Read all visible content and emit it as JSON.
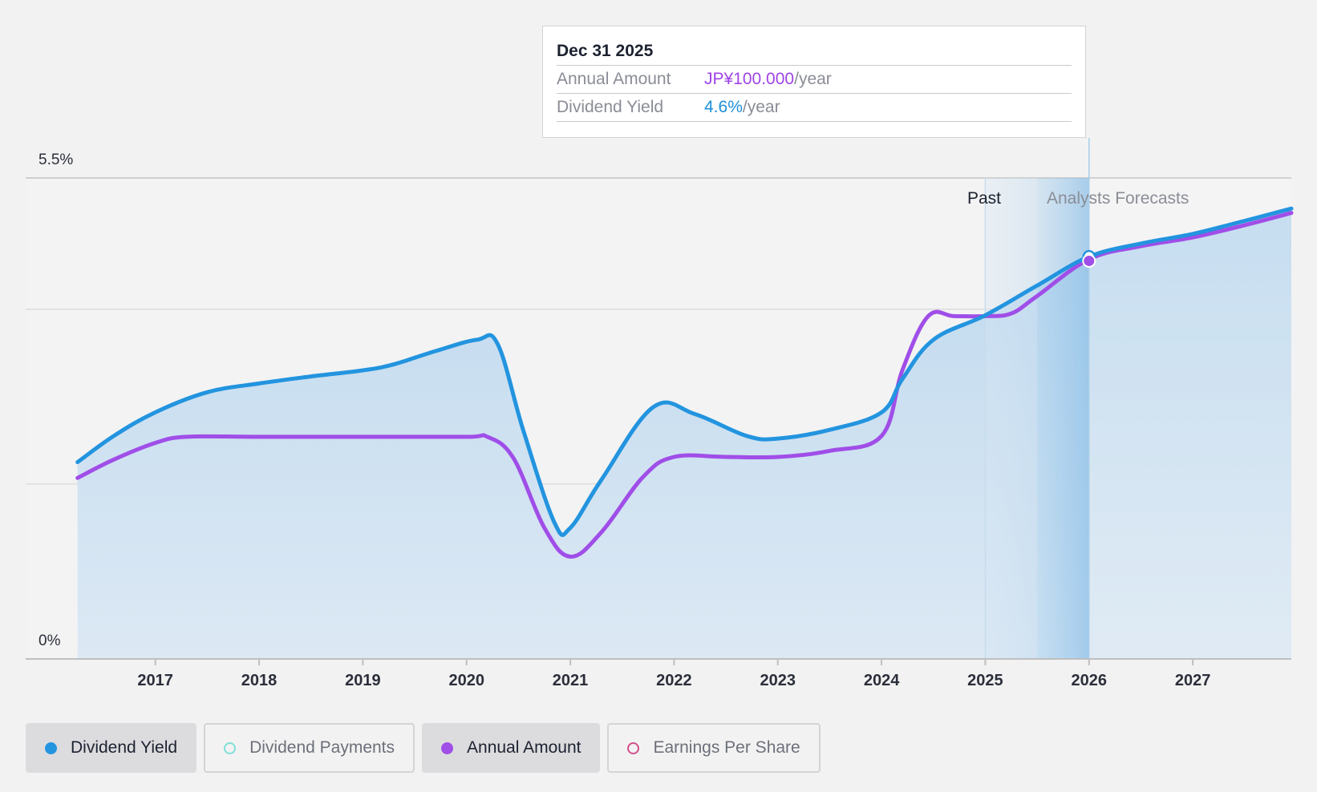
{
  "tooltip": {
    "date": "Dec 31 2025",
    "rows": [
      {
        "label": "Annual Amount",
        "value": "JP¥100.000",
        "unit": "/year"
      },
      {
        "label": "Dividend Yield",
        "value": "4.6%",
        "unit": "/year"
      }
    ]
  },
  "regions": {
    "past_label": "Past",
    "forecast_label": "Analysts Forecasts"
  },
  "legend": [
    {
      "label": "Dividend Yield",
      "color": "#2394df",
      "state": "active",
      "dot": "filled"
    },
    {
      "label": "Dividend Payments",
      "color": "#7fe0d6",
      "state": "inactive",
      "dot": "hollow"
    },
    {
      "label": "Annual Amount",
      "color": "#a04ee8",
      "state": "active",
      "dot": "filled"
    },
    {
      "label": "Earnings Per Share",
      "color": "#d0508a",
      "state": "inactive",
      "dot": "hollow"
    }
  ],
  "chart_data": {
    "type": "area",
    "x_ticks": [
      "2017",
      "2018",
      "2019",
      "2020",
      "2021",
      "2022",
      "2023",
      "2024",
      "2025",
      "2026",
      "2027"
    ],
    "y_tick_labels": [
      "5.5%",
      "0%"
    ],
    "ylim": [
      0,
      5.5
    ],
    "xlim": [
      2015.75,
      2027.95
    ],
    "past_start": 2025.0,
    "forecast_start": 2026.0,
    "series": [
      {
        "name": "Dividend Yield",
        "color": "#2394df",
        "points": [
          [
            2016.25,
            2.25
          ],
          [
            2016.6,
            2.55
          ],
          [
            2017.0,
            2.82
          ],
          [
            2017.5,
            3.05
          ],
          [
            2018.0,
            3.15
          ],
          [
            2018.5,
            3.23
          ],
          [
            2019.0,
            3.3
          ],
          [
            2019.3,
            3.37
          ],
          [
            2019.7,
            3.52
          ],
          [
            2020.1,
            3.65
          ],
          [
            2020.3,
            3.6
          ],
          [
            2020.55,
            2.6
          ],
          [
            2020.85,
            1.55
          ],
          [
            2021.0,
            1.5
          ],
          [
            2021.3,
            2.05
          ],
          [
            2021.8,
            2.88
          ],
          [
            2022.2,
            2.8
          ],
          [
            2022.7,
            2.55
          ],
          [
            2023.0,
            2.52
          ],
          [
            2023.5,
            2.62
          ],
          [
            2024.0,
            2.82
          ],
          [
            2024.2,
            3.2
          ],
          [
            2024.5,
            3.65
          ],
          [
            2025.0,
            3.93
          ],
          [
            2025.5,
            4.27
          ],
          [
            2026.0,
            4.6
          ],
          [
            2026.5,
            4.75
          ],
          [
            2027.0,
            4.86
          ],
          [
            2027.5,
            5.01
          ],
          [
            2027.95,
            5.15
          ]
        ]
      },
      {
        "name": "Annual Amount",
        "color": "#a04ee8",
        "points": [
          [
            2016.25,
            2.07
          ],
          [
            2016.6,
            2.28
          ],
          [
            2017.0,
            2.47
          ],
          [
            2017.3,
            2.54
          ],
          [
            2018.0,
            2.54
          ],
          [
            2019.0,
            2.54
          ],
          [
            2020.0,
            2.54
          ],
          [
            2020.2,
            2.54
          ],
          [
            2020.45,
            2.3
          ],
          [
            2020.75,
            1.5
          ],
          [
            2021.0,
            1.17
          ],
          [
            2021.3,
            1.45
          ],
          [
            2021.7,
            2.08
          ],
          [
            2022.0,
            2.31
          ],
          [
            2022.5,
            2.31
          ],
          [
            2023.0,
            2.31
          ],
          [
            2023.5,
            2.38
          ],
          [
            2024.0,
            2.55
          ],
          [
            2024.2,
            3.3
          ],
          [
            2024.45,
            3.92
          ],
          [
            2024.7,
            3.92
          ],
          [
            2025.0,
            3.92
          ],
          [
            2025.25,
            3.95
          ],
          [
            2025.5,
            4.15
          ],
          [
            2026.0,
            4.57
          ],
          [
            2026.5,
            4.72
          ],
          [
            2027.0,
            4.82
          ],
          [
            2027.5,
            4.96
          ],
          [
            2027.95,
            5.1
          ]
        ]
      }
    ],
    "highlight": {
      "x": 2026.0,
      "yield": 4.6,
      "annual_amount": 4.57
    }
  }
}
